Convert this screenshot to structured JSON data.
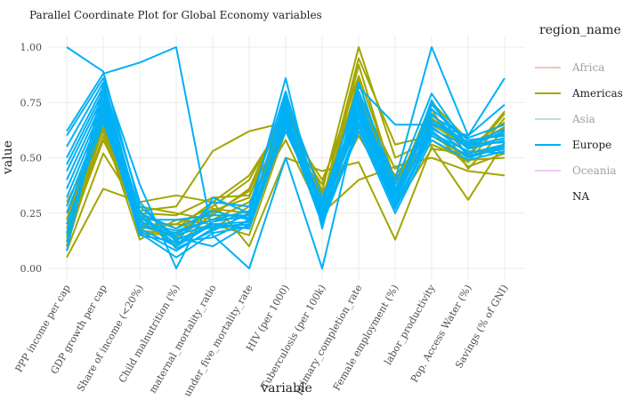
{
  "chart_data": {
    "type": "line",
    "subtype": "parallel-coordinates",
    "title": "Parallel Coordinate Plot for Global Economy variables",
    "xlabel": "variable",
    "ylabel": "value",
    "ylim": [
      0,
      1
    ],
    "yticks": [
      "0.00",
      "0.25",
      "0.50",
      "0.75",
      "1.00"
    ],
    "ytick_values": [
      0,
      0.25,
      0.5,
      0.75,
      1
    ],
    "categories": [
      "PPP income per cap",
      "GDP growth per cap",
      "Share of income (<20%)",
      "Child malnutrition (%)",
      "maternal_mortality_ratio",
      "under_five_mortality_rate",
      "HIV (per 1000)",
      "Tuberculosis (per 100k)",
      "primary_completion_rate",
      "Female employment (%)",
      "labor_productivity",
      "Pop. Access Water (%)",
      "Savings (% of GNI)"
    ],
    "legend": {
      "title": "region_name",
      "position": "right",
      "items": [
        {
          "label": "Africa",
          "color": "#f4a6a6",
          "faded": true
        },
        {
          "label": "Americas",
          "color": "#a3a500",
          "faded": false
        },
        {
          "label": "Asia",
          "color": "#9fd9c4",
          "faded": true
        },
        {
          "label": "Europe",
          "color": "#00b0f6",
          "faded": false
        },
        {
          "label": "Oceania",
          "color": "#e7b6f0",
          "faded": true
        },
        {
          "label": "NA",
          "color": "#ffffff",
          "faded": false
        }
      ]
    },
    "series": [
      {
        "name": "Americas",
        "values": [
          0.05,
          0.36,
          0.3,
          0.33,
          0.3,
          0.1,
          0.5,
          0.44,
          0.48,
          0.13,
          0.55,
          0.31,
          0.57
        ]
      },
      {
        "name": "Americas",
        "values": [
          0.08,
          0.52,
          0.26,
          0.28,
          0.53,
          0.62,
          0.66,
          0.25,
          0.4,
          0.46,
          0.5,
          0.44,
          0.42
        ]
      },
      {
        "name": "Americas",
        "values": [
          0.1,
          0.68,
          0.16,
          0.15,
          0.26,
          0.32,
          0.75,
          0.35,
          1.0,
          0.5,
          0.58,
          0.48,
          0.68
        ]
      },
      {
        "name": "Americas",
        "values": [
          0.12,
          0.6,
          0.2,
          0.2,
          0.28,
          0.4,
          0.7,
          0.3,
          0.95,
          0.56,
          0.6,
          0.5,
          0.7
        ]
      },
      {
        "name": "Americas",
        "values": [
          0.15,
          0.63,
          0.13,
          0.22,
          0.2,
          0.15,
          0.62,
          0.38,
          0.87,
          0.4,
          0.65,
          0.55,
          0.66
        ]
      },
      {
        "name": "Americas",
        "values": [
          0.18,
          0.65,
          0.22,
          0.1,
          0.25,
          0.35,
          0.72,
          0.28,
          0.6,
          0.32,
          0.72,
          0.45,
          0.63
        ]
      },
      {
        "name": "Americas",
        "values": [
          0.2,
          0.7,
          0.24,
          0.18,
          0.3,
          0.42,
          0.68,
          0.32,
          0.8,
          0.35,
          0.75,
          0.58,
          0.6
        ]
      },
      {
        "name": "Americas",
        "values": [
          0.25,
          0.66,
          0.28,
          0.25,
          0.22,
          0.3,
          0.58,
          0.24,
          0.72,
          0.28,
          0.54,
          0.52,
          0.55
        ]
      },
      {
        "name": "Americas",
        "values": [
          0.3,
          0.62,
          0.18,
          0.2,
          0.18,
          0.28,
          0.64,
          0.34,
          0.65,
          0.42,
          0.62,
          0.46,
          0.52
        ]
      },
      {
        "name": "Americas",
        "values": [
          0.22,
          0.72,
          0.2,
          0.14,
          0.24,
          0.36,
          0.74,
          0.26,
          0.92,
          0.38,
          0.68,
          0.54,
          0.64
        ]
      },
      {
        "name": "Americas",
        "values": [
          0.14,
          0.58,
          0.25,
          0.24,
          0.32,
          0.33,
          0.66,
          0.4,
          0.78,
          0.45,
          0.56,
          0.49,
          0.5
        ]
      },
      {
        "name": "Americas",
        "values": [
          0.1,
          0.64,
          0.17,
          0.16,
          0.27,
          0.25,
          0.7,
          0.3,
          0.85,
          0.3,
          0.7,
          0.51,
          0.71
        ]
      },
      {
        "name": "Europe",
        "values": [
          1.0,
          0.89,
          0.28,
          0.14,
          0.1,
          0.2,
          0.66,
          0.3,
          0.8,
          0.4,
          1.0,
          0.6,
          0.86
        ]
      },
      {
        "name": "Europe",
        "values": [
          0.62,
          0.88,
          0.93,
          1.0,
          0.15,
          0.0,
          0.5,
          0.0,
          0.7,
          0.3,
          0.76,
          0.5,
          0.56
        ]
      },
      {
        "name": "Europe",
        "values": [
          0.6,
          0.86,
          0.38,
          0.0,
          0.32,
          0.25,
          0.86,
          0.18,
          0.82,
          0.65,
          0.65,
          0.6,
          0.74
        ]
      },
      {
        "name": "Europe",
        "values": [
          0.55,
          0.84,
          0.3,
          0.12,
          0.3,
          0.28,
          0.8,
          0.25,
          0.75,
          0.38,
          0.79,
          0.55,
          0.62
        ]
      },
      {
        "name": "Europe",
        "values": [
          0.5,
          0.82,
          0.25,
          0.18,
          0.26,
          0.22,
          0.78,
          0.32,
          0.7,
          0.35,
          0.72,
          0.58,
          0.6
        ]
      },
      {
        "name": "Europe",
        "values": [
          0.47,
          0.8,
          0.22,
          0.22,
          0.24,
          0.24,
          0.75,
          0.28,
          0.76,
          0.33,
          0.7,
          0.54,
          0.58
        ]
      },
      {
        "name": "Europe",
        "values": [
          0.44,
          0.78,
          0.2,
          0.16,
          0.22,
          0.26,
          0.72,
          0.24,
          0.68,
          0.3,
          0.66,
          0.56,
          0.57
        ]
      },
      {
        "name": "Europe",
        "values": [
          0.4,
          0.76,
          0.18,
          0.1,
          0.2,
          0.21,
          0.7,
          0.22,
          0.72,
          0.32,
          0.64,
          0.52,
          0.56
        ]
      },
      {
        "name": "Europe",
        "values": [
          0.36,
          0.74,
          0.17,
          0.08,
          0.18,
          0.2,
          0.68,
          0.26,
          0.66,
          0.28,
          0.62,
          0.5,
          0.55
        ]
      },
      {
        "name": "Europe",
        "values": [
          0.32,
          0.72,
          0.16,
          0.05,
          0.16,
          0.19,
          0.66,
          0.22,
          0.64,
          0.27,
          0.6,
          0.51,
          0.54
        ]
      },
      {
        "name": "Europe",
        "values": [
          0.28,
          0.7,
          0.15,
          0.12,
          0.14,
          0.22,
          0.65,
          0.2,
          0.62,
          0.25,
          0.58,
          0.49,
          0.53
        ]
      },
      {
        "name": "Europe",
        "values": [
          0.25,
          0.68,
          0.19,
          0.15,
          0.2,
          0.18,
          0.64,
          0.24,
          0.7,
          0.29,
          0.61,
          0.53,
          0.52
        ]
      },
      {
        "name": "Europe",
        "values": [
          0.2,
          0.66,
          0.21,
          0.17,
          0.22,
          0.23,
          0.62,
          0.27,
          0.74,
          0.31,
          0.63,
          0.55,
          0.59
        ]
      },
      {
        "name": "Europe",
        "values": [
          0.16,
          0.75,
          0.23,
          0.13,
          0.19,
          0.2,
          0.7,
          0.23,
          0.78,
          0.34,
          0.67,
          0.57,
          0.61
        ]
      },
      {
        "name": "Europe",
        "values": [
          0.12,
          0.83,
          0.24,
          0.11,
          0.21,
          0.24,
          0.76,
          0.25,
          0.84,
          0.36,
          0.69,
          0.59,
          0.65
        ]
      },
      {
        "name": "Europe",
        "values": [
          0.08,
          0.79,
          0.26,
          0.09,
          0.17,
          0.25,
          0.73,
          0.21,
          0.73,
          0.34,
          0.74,
          0.56,
          0.63
        ]
      }
    ]
  }
}
